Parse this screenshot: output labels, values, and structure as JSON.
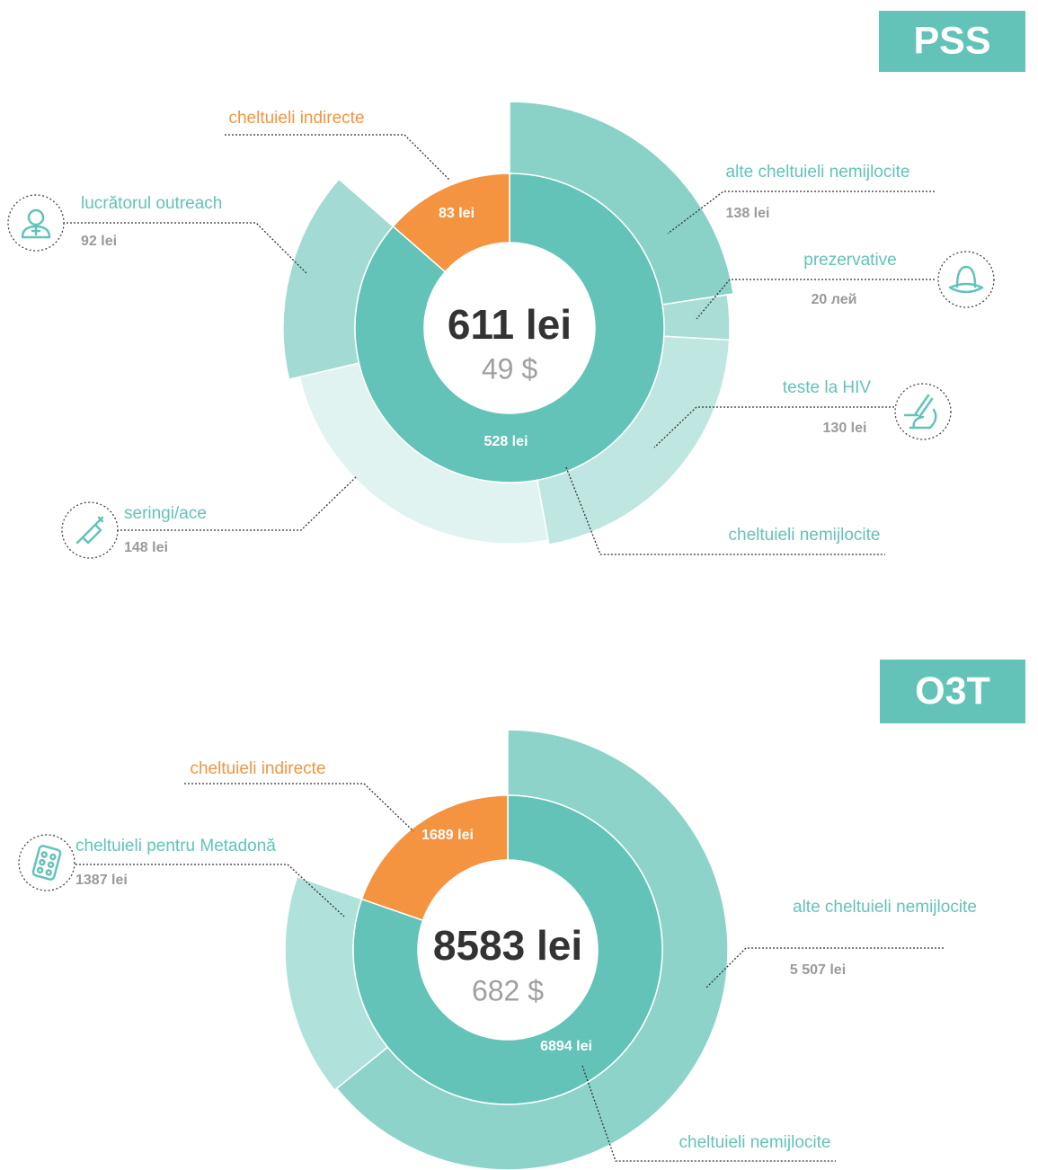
{
  "chart_data": [
    {
      "type": "sunburst",
      "title": "PSS",
      "total": 611,
      "total_label": "611 lei",
      "total_usd": 49,
      "total_usd_label": "49 $",
      "inner": {
        "categories": [
          "cheltuieli nemijlocite",
          "cheltuieli indirecte"
        ],
        "values": [
          528,
          83
        ],
        "value_labels": [
          "528 lei",
          "83 lei"
        ],
        "colors": [
          "#63c3b8",
          "#f49441"
        ]
      },
      "outer": {
        "categories": [
          "alte cheltuieli nemijlocite",
          "prezervative",
          "teste la HIV",
          "seringi/ace",
          "lucrătorul outreach"
        ],
        "values": [
          138,
          20,
          130,
          148,
          92
        ],
        "value_labels": [
          "138 lei",
          "20 лей",
          "130 lei",
          "148 lei",
          "92 lei"
        ],
        "colors": [
          "#8ad1c8",
          "#a9ddd6",
          "#bfe6e1",
          "#e0f3f0",
          "#a3dbd4"
        ]
      }
    },
    {
      "type": "sunburst",
      "title": "O3T",
      "total": 8583,
      "total_label": "8583 lei",
      "total_usd": 682,
      "total_usd_label": "682 $",
      "inner": {
        "categories": [
          "cheltuieli nemijlocite",
          "cheltuieli indirecte"
        ],
        "values": [
          6894,
          1689
        ],
        "value_labels": [
          "6894 lei",
          "1689 lei"
        ],
        "colors": [
          "#63c3b8",
          "#f49441"
        ]
      },
      "outer": {
        "categories": [
          "alte cheltuieli nemijlocite",
          "cheltuieli pentru Metadonă"
        ],
        "values": [
          5507,
          1387
        ],
        "value_labels": [
          "5 507 lei",
          "1387 lei"
        ],
        "colors": [
          "#8dd3c9",
          "#b0e1db"
        ]
      }
    }
  ]
}
